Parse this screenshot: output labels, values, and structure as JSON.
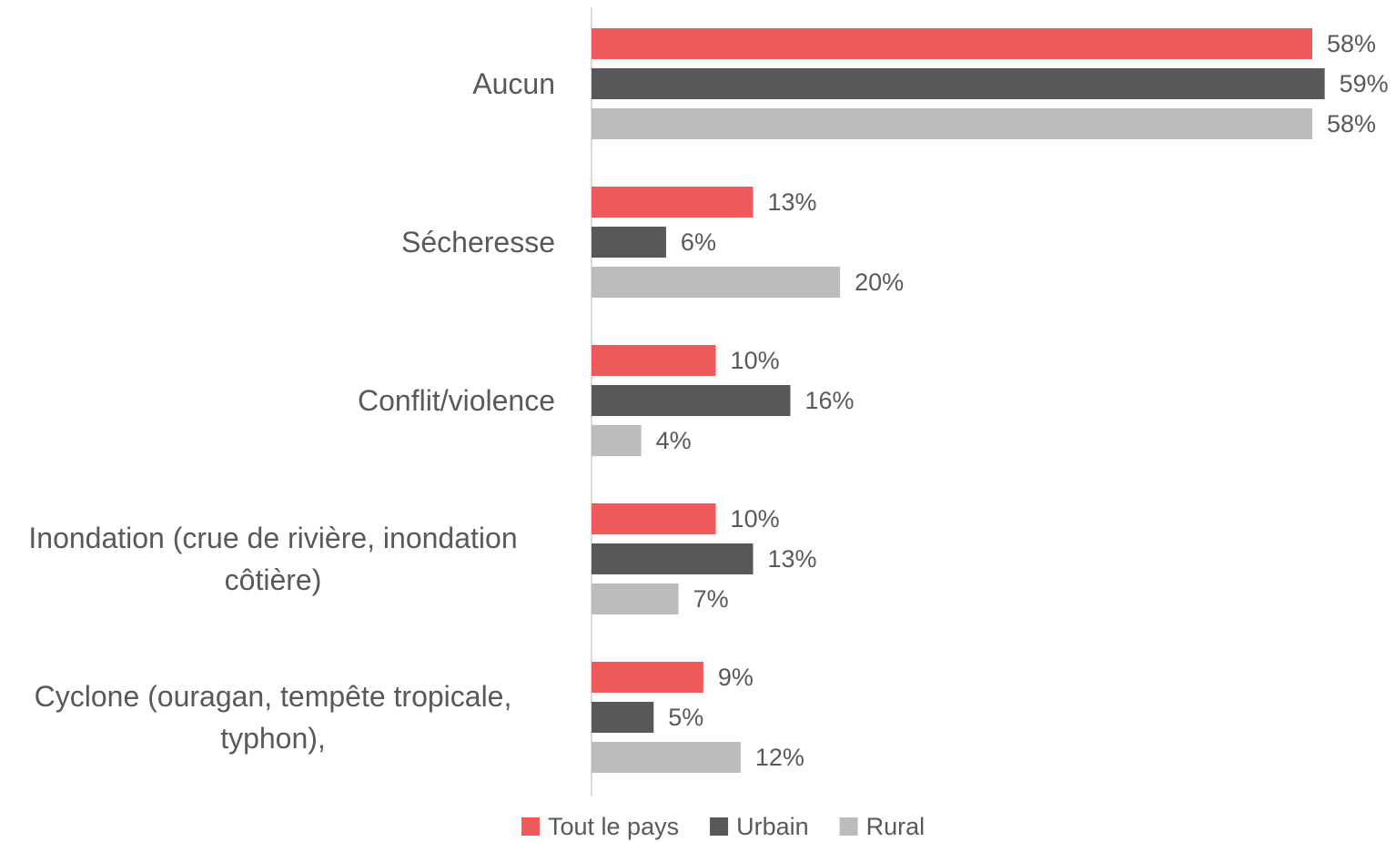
{
  "chart_data": {
    "type": "bar",
    "orientation": "horizontal",
    "categories": [
      "Aucun",
      "Sécheresse",
      "Conflit/violence",
      "Inondation (crue de rivière, inondation côtière)",
      "Cyclone (ouragan, tempête tropicale, typhon),"
    ],
    "series": [
      {
        "name": "Tout le pays",
        "color": "#f05a5b",
        "values": [
          58,
          13,
          10,
          10,
          9
        ],
        "value_labels": [
          "58%",
          "13%",
          "10%",
          "10%",
          "9%"
        ]
      },
      {
        "name": "Urbain",
        "color": "#58585a",
        "values": [
          59,
          6,
          16,
          13,
          5
        ],
        "value_labels": [
          "59%",
          "6%",
          "16%",
          "13%",
          "5%"
        ]
      },
      {
        "name": "Rural",
        "color": "#bcbcbc",
        "values": [
          58,
          20,
          4,
          7,
          12
        ],
        "value_labels": [
          "58%",
          "20%",
          "4%",
          "7%",
          "12%"
        ]
      }
    ],
    "legend": "bottom"
  }
}
